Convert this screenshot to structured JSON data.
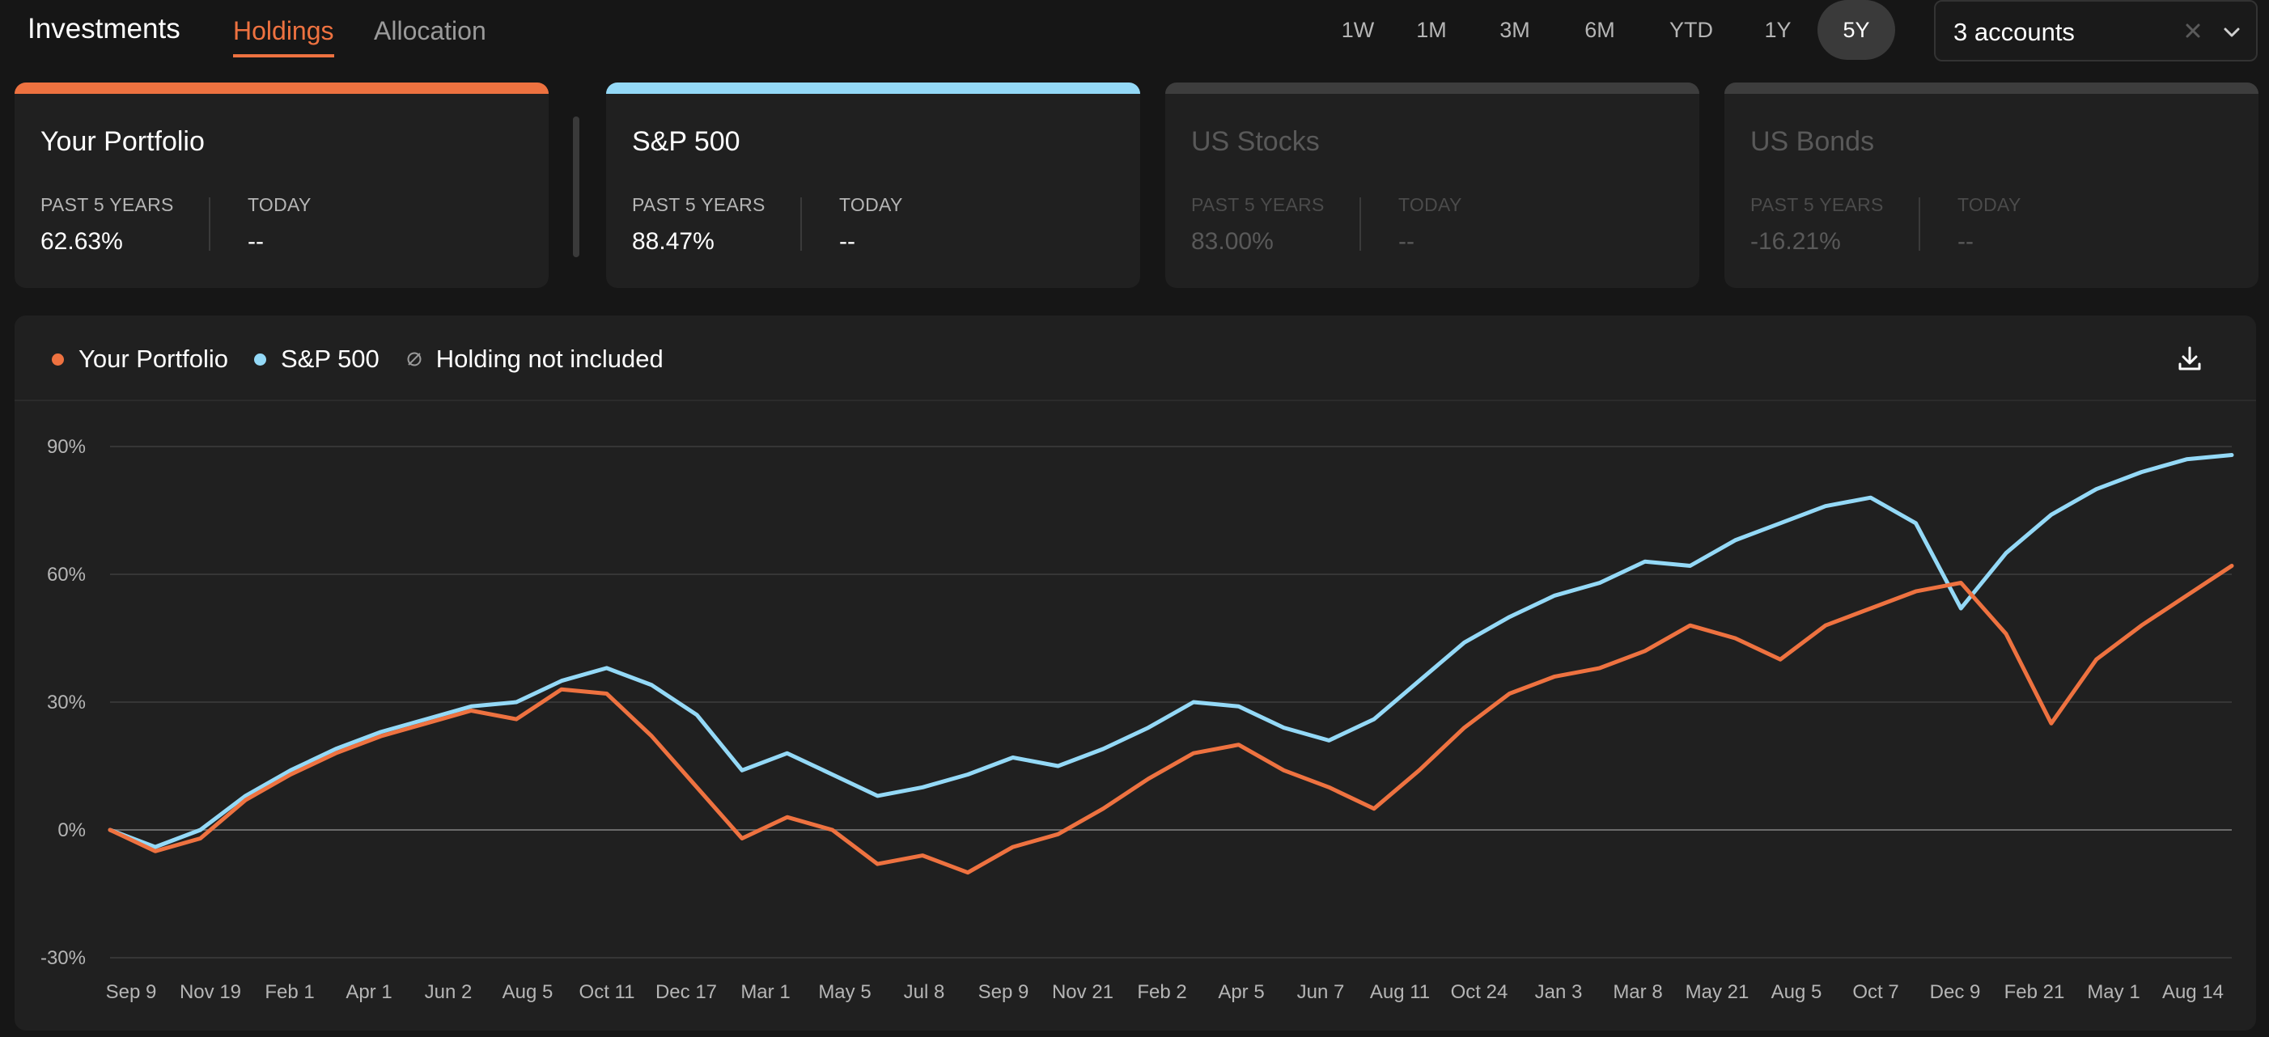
{
  "header": {
    "title": "Investments",
    "tabs": [
      {
        "label": "Holdings",
        "active": true
      },
      {
        "label": "Allocation",
        "active": false
      }
    ],
    "ranges": [
      {
        "label": "1W",
        "active": false
      },
      {
        "label": "1M",
        "active": false
      },
      {
        "label": "3M",
        "active": false
      },
      {
        "label": "6M",
        "active": false
      },
      {
        "label": "YTD",
        "active": false
      },
      {
        "label": "1Y",
        "active": false
      },
      {
        "label": "5Y",
        "active": true
      }
    ],
    "account_select": {
      "value": "3 accounts",
      "clear_icon": "x-icon",
      "open_icon": "chevron-down-icon"
    }
  },
  "cards": [
    {
      "title": "Your Portfolio",
      "accent": "#ee7240",
      "active": true,
      "stat1_label": "PAST 5 YEARS",
      "stat1_value": "62.63%",
      "stat2_label": "TODAY",
      "stat2_value": "--"
    },
    {
      "title": "S&P 500",
      "accent": "#94d9f7",
      "active": true,
      "stat1_label": "PAST 5 YEARS",
      "stat1_value": "88.47%",
      "stat2_label": "TODAY",
      "stat2_value": "--"
    },
    {
      "title": "US Stocks",
      "accent": "#3d3d3d",
      "active": false,
      "stat1_label": "PAST 5 YEARS",
      "stat1_value": "83.00%",
      "stat2_label": "TODAY",
      "stat2_value": "--"
    },
    {
      "title": "US Bonds",
      "accent": "#3d3d3d",
      "active": false,
      "stat1_label": "PAST 5 YEARS",
      "stat1_value": "-16.21%",
      "stat2_label": "TODAY",
      "stat2_value": "--"
    }
  ],
  "legend": [
    {
      "label": "Your Portfolio",
      "color": "#ee7240",
      "icon": "dot-icon"
    },
    {
      "label": "S&P 500",
      "color": "#94d9f7",
      "icon": "dot-icon"
    },
    {
      "label": "Holding not included",
      "color": "#9a9a9a",
      "icon": "empty-set-icon"
    }
  ],
  "download_icon": "download-icon",
  "chart_data": {
    "type": "line",
    "ylim": [
      -30,
      90
    ],
    "yticks": [
      "-30%",
      "0%",
      "30%",
      "60%",
      "90%"
    ],
    "yvalues": [
      -30,
      0,
      30,
      60,
      90
    ],
    "xticks": [
      "Sep 9",
      "Nov 19",
      "Feb 1",
      "Apr 1",
      "Jun 2",
      "Aug 5",
      "Oct 11",
      "Dec 17",
      "Mar 1",
      "May 5",
      "Jul 8",
      "Sep 9",
      "Nov 21",
      "Feb 2",
      "Apr 5",
      "Jun 7",
      "Aug 11",
      "Oct 24",
      "Jan 3",
      "Mar 8",
      "May 21",
      "Aug 5",
      "Oct 7",
      "Dec 9",
      "Feb 21",
      "May 1",
      "Aug 14"
    ],
    "grid": true,
    "series": [
      {
        "name": "Your Portfolio",
        "color": "#ee7240",
        "values": [
          0,
          -5,
          -2,
          7,
          13,
          18,
          22,
          25,
          28,
          26,
          33,
          32,
          22,
          10,
          -2,
          3,
          0,
          -8,
          -6,
          -10,
          -4,
          -1,
          5,
          12,
          18,
          20,
          14,
          10,
          5,
          14,
          24,
          32,
          36,
          38,
          42,
          48,
          45,
          40,
          48,
          52,
          56,
          58,
          46,
          25,
          40,
          48,
          55,
          62
        ]
      },
      {
        "name": "S&P 500",
        "color": "#94d9f7",
        "values": [
          0,
          -4,
          0,
          8,
          14,
          19,
          23,
          26,
          29,
          30,
          35,
          38,
          34,
          27,
          14,
          18,
          13,
          8,
          10,
          13,
          17,
          15,
          19,
          24,
          30,
          29,
          24,
          21,
          26,
          35,
          44,
          50,
          55,
          58,
          63,
          62,
          68,
          72,
          76,
          78,
          72,
          52,
          65,
          74,
          80,
          84,
          87,
          88
        ]
      }
    ]
  }
}
